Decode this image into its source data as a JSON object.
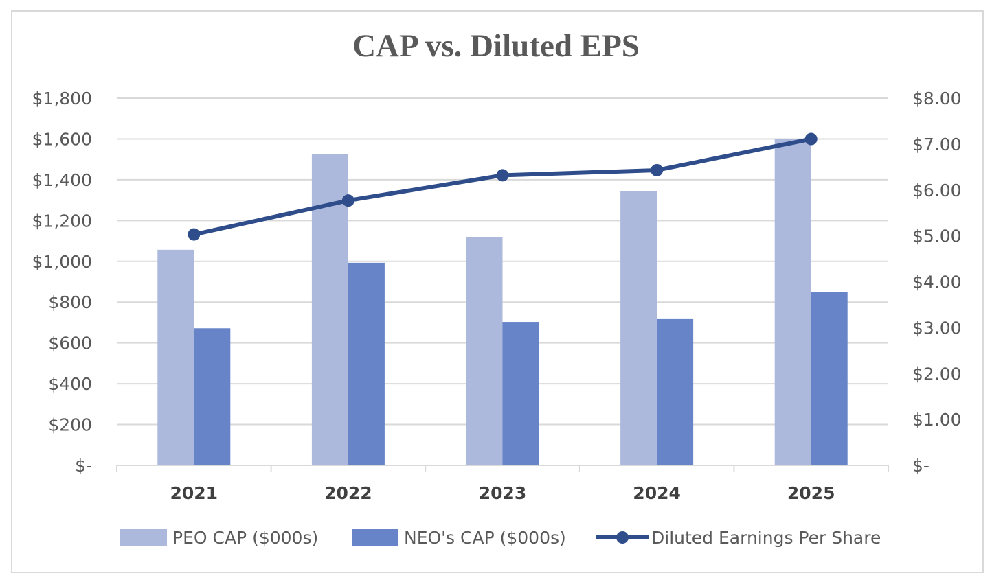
{
  "chart_data": {
    "type": "bar",
    "title": "CAP vs. Diluted EPS",
    "categories": [
      "2021",
      "2022",
      "2023",
      "2024",
      "2025"
    ],
    "series": [
      {
        "name": "PEO CAP ($000s)",
        "type": "bar",
        "axis": "left",
        "color": "#adb9dc",
        "values": [
          1057,
          1525,
          1118,
          1345,
          1600
        ]
      },
      {
        "name": "NEO's CAP ($000s)",
        "type": "bar",
        "axis": "left",
        "color": "#6784c9",
        "values": [
          672,
          993,
          703,
          717,
          850
        ]
      },
      {
        "name": "Diluted Earnings Per Share",
        "type": "line",
        "axis": "right",
        "color": "#2f4d8a",
        "values": [
          5.03,
          5.77,
          6.32,
          6.43,
          7.11
        ]
      }
    ],
    "y_left": {
      "range": [
        0,
        1800
      ],
      "ticks": [
        0,
        200,
        400,
        600,
        800,
        1000,
        1200,
        1400,
        1600,
        1800
      ],
      "tick_labels": [
        "$-",
        "$200",
        "$400",
        "$600",
        "$800",
        "$1,000",
        "$1,200",
        "$1,400",
        "$1,600",
        "$1,800"
      ]
    },
    "y_right": {
      "range": [
        0,
        8
      ],
      "ticks": [
        0,
        1,
        2,
        3,
        4,
        5,
        6,
        7,
        8
      ],
      "tick_labels": [
        "$-",
        "$1.00",
        "$2.00",
        "$3.00",
        "$4.00",
        "$5.00",
        "$6.00",
        "$7.00",
        "$8.00"
      ]
    },
    "grid": true,
    "legend_position": "bottom"
  }
}
